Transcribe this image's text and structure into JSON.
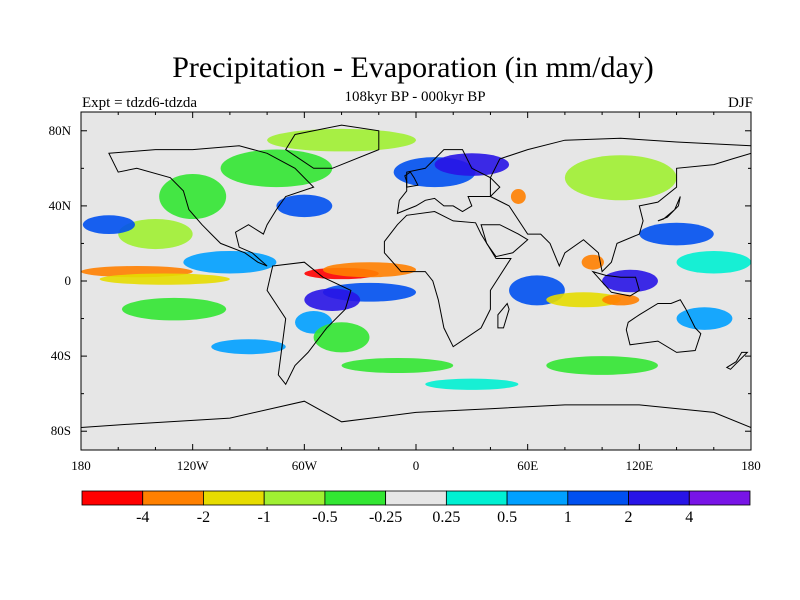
{
  "title": "Precipitation - Evaporation (in mm/day)",
  "subtitle": "108kyr BP - 000kyr BP",
  "left_label": "Expt = tdzd6-tdzda",
  "right_label": "DJF",
  "map": {
    "lat_ticks": [
      "80N",
      "40N",
      "0",
      "40S",
      "80S"
    ],
    "lon_ticks": [
      "180",
      "120W",
      "60W",
      "0",
      "60E",
      "120E",
      "180"
    ]
  },
  "colorbar": {
    "colors": [
      "#ff0000",
      "#ff8000",
      "#e6dc00",
      "#a0f032",
      "#32e632",
      "#e6e6e6",
      "#00f0d2",
      "#00a0ff",
      "#0050f0",
      "#2814e6",
      "#7814e6"
    ],
    "labels": [
      "-4",
      "-2",
      "-1",
      "-0.5",
      "-0.25",
      "0.25",
      "0.5",
      "1",
      "2",
      "4"
    ]
  },
  "regions": [
    {
      "color": "#32e632",
      "lon": -120,
      "lat": 45,
      "rx": 18,
      "ry": 12
    },
    {
      "color": "#a0f032",
      "lon": -140,
      "lat": 25,
      "rx": 20,
      "ry": 8
    },
    {
      "color": "#0050f0",
      "lon": -165,
      "lat": 30,
      "rx": 14,
      "ry": 5
    },
    {
      "color": "#00a0ff",
      "lon": -100,
      "lat": 10,
      "rx": 25,
      "ry": 6
    },
    {
      "color": "#ff8000",
      "lon": -150,
      "lat": 5,
      "rx": 30,
      "ry": 3
    },
    {
      "color": "#e6dc00",
      "lon": -135,
      "lat": 1,
      "rx": 35,
      "ry": 3
    },
    {
      "color": "#32e632",
      "lon": -130,
      "lat": -15,
      "rx": 28,
      "ry": 6
    },
    {
      "color": "#0050f0",
      "lon": -60,
      "lat": 40,
      "rx": 15,
      "ry": 6
    },
    {
      "color": "#32e632",
      "lon": -75,
      "lat": 60,
      "rx": 30,
      "ry": 10
    },
    {
      "color": "#a0f032",
      "lon": -40,
      "lat": 75,
      "rx": 40,
      "ry": 6
    },
    {
      "color": "#0050f0",
      "lon": 10,
      "lat": 58,
      "rx": 22,
      "ry": 8
    },
    {
      "color": "#2814e6",
      "lon": 30,
      "lat": 62,
      "rx": 20,
      "ry": 6
    },
    {
      "color": "#ff8000",
      "lon": 55,
      "lat": 45,
      "rx": 4,
      "ry": 4
    },
    {
      "color": "#ff0000",
      "lon": -40,
      "lat": 4,
      "rx": 20,
      "ry": 3
    },
    {
      "color": "#ff8000",
      "lon": -25,
      "lat": 6,
      "rx": 25,
      "ry": 4
    },
    {
      "color": "#0050f0",
      "lon": -25,
      "lat": -6,
      "rx": 25,
      "ry": 5
    },
    {
      "color": "#2814e6",
      "lon": -45,
      "lat": -10,
      "rx": 15,
      "ry": 6
    },
    {
      "color": "#00a0ff",
      "lon": -55,
      "lat": -22,
      "rx": 10,
      "ry": 6
    },
    {
      "color": "#32e632",
      "lon": -40,
      "lat": -30,
      "rx": 15,
      "ry": 8
    },
    {
      "color": "#0050f0",
      "lon": 65,
      "lat": -5,
      "rx": 15,
      "ry": 8
    },
    {
      "color": "#e6dc00",
      "lon": 90,
      "lat": -10,
      "rx": 20,
      "ry": 4
    },
    {
      "color": "#ff8000",
      "lon": 110,
      "lat": -10,
      "rx": 10,
      "ry": 3
    },
    {
      "color": "#2814e6",
      "lon": 115,
      "lat": 0,
      "rx": 15,
      "ry": 6
    },
    {
      "color": "#ff8000",
      "lon": 95,
      "lat": 10,
      "rx": 6,
      "ry": 4
    },
    {
      "color": "#0050f0",
      "lon": 140,
      "lat": 25,
      "rx": 20,
      "ry": 6
    },
    {
      "color": "#00f0d2",
      "lon": 160,
      "lat": 10,
      "rx": 20,
      "ry": 6
    },
    {
      "color": "#00a0ff",
      "lon": 155,
      "lat": -20,
      "rx": 15,
      "ry": 6
    },
    {
      "color": "#a0f032",
      "lon": 110,
      "lat": 55,
      "rx": 30,
      "ry": 12
    },
    {
      "color": "#32e632",
      "lon": -10,
      "lat": -45,
      "rx": 30,
      "ry": 4
    },
    {
      "color": "#00f0d2",
      "lon": 30,
      "lat": -55,
      "rx": 25,
      "ry": 3
    },
    {
      "color": "#32e632",
      "lon": 100,
      "lat": -45,
      "rx": 30,
      "ry": 5
    },
    {
      "color": "#00a0ff",
      "lon": -90,
      "lat": -35,
      "rx": 20,
      "ry": 4
    }
  ],
  "continents": [
    {
      "name": "north-america",
      "pts": [
        [
          -165,
          68
        ],
        [
          -140,
          70
        ],
        [
          -120,
          70
        ],
        [
          -95,
          72
        ],
        [
          -80,
          68
        ],
        [
          -65,
          60
        ],
        [
          -55,
          50
        ],
        [
          -70,
          45
        ],
        [
          -75,
          38
        ],
        [
          -80,
          30
        ],
        [
          -82,
          25
        ],
        [
          -90,
          30
        ],
        [
          -97,
          26
        ],
        [
          -95,
          18
        ],
        [
          -88,
          15
        ],
        [
          -80,
          8
        ],
        [
          -85,
          10
        ],
        [
          -92,
          15
        ],
        [
          -105,
          20
        ],
        [
          -110,
          25
        ],
        [
          -115,
          30
        ],
        [
          -122,
          38
        ],
        [
          -125,
          48
        ],
        [
          -132,
          55
        ],
        [
          -150,
          60
        ],
        [
          -160,
          58
        ]
      ]
    },
    {
      "name": "south-america",
      "pts": [
        [
          -77,
          8
        ],
        [
          -60,
          10
        ],
        [
          -50,
          2
        ],
        [
          -35,
          -5
        ],
        [
          -38,
          -15
        ],
        [
          -48,
          -25
        ],
        [
          -58,
          -38
        ],
        [
          -65,
          -45
        ],
        [
          -70,
          -55
        ],
        [
          -74,
          -50
        ],
        [
          -72,
          -35
        ],
        [
          -70,
          -20
        ],
        [
          -80,
          -5
        ]
      ]
    },
    {
      "name": "greenland",
      "pts": [
        [
          -55,
          60
        ],
        [
          -45,
          60
        ],
        [
          -20,
          70
        ],
        [
          -20,
          80
        ],
        [
          -40,
          83
        ],
        [
          -65,
          78
        ],
        [
          -70,
          70
        ]
      ]
    },
    {
      "name": "europe",
      "pts": [
        [
          -10,
          36
        ],
        [
          0,
          40
        ],
        [
          5,
          43
        ],
        [
          10,
          44
        ],
        [
          15,
          40
        ],
        [
          20,
          40
        ],
        [
          25,
          37
        ],
        [
          30,
          40
        ],
        [
          28,
          45
        ],
        [
          40,
          45
        ],
        [
          45,
          50
        ],
        [
          40,
          55
        ],
        [
          30,
          60
        ],
        [
          25,
          70
        ],
        [
          15,
          70
        ],
        [
          5,
          60
        ],
        [
          -5,
          58
        ],
        [
          -5,
          48
        ],
        [
          -9,
          43
        ]
      ]
    },
    {
      "name": "africa",
      "pts": [
        [
          -17,
          15
        ],
        [
          -17,
          21
        ],
        [
          -10,
          30
        ],
        [
          -5,
          35
        ],
        [
          10,
          37
        ],
        [
          20,
          32
        ],
        [
          32,
          31
        ],
        [
          35,
          25
        ],
        [
          43,
          12
        ],
        [
          51,
          12
        ],
        [
          40,
          -5
        ],
        [
          40,
          -15
        ],
        [
          35,
          -25
        ],
        [
          20,
          -35
        ],
        [
          15,
          -25
        ],
        [
          12,
          -10
        ],
        [
          9,
          0
        ],
        [
          5,
          5
        ],
        [
          -8,
          5
        ]
      ]
    },
    {
      "name": "asia",
      "pts": [
        [
          40,
          45
        ],
        [
          50,
          40
        ],
        [
          60,
          25
        ],
        [
          67,
          25
        ],
        [
          72,
          20
        ],
        [
          77,
          8
        ],
        [
          80,
          15
        ],
        [
          90,
          22
        ],
        [
          98,
          15
        ],
        [
          100,
          5
        ],
        [
          105,
          10
        ],
        [
          108,
          20
        ],
        [
          120,
          25
        ],
        [
          122,
          32
        ],
        [
          120,
          40
        ],
        [
          130,
          42
        ],
        [
          140,
          50
        ],
        [
          140,
          60
        ],
        [
          160,
          62
        ],
        [
          170,
          65
        ],
        [
          180,
          68
        ],
        [
          180,
          72
        ],
        [
          140,
          74
        ],
        [
          110,
          76
        ],
        [
          80,
          75
        ],
        [
          60,
          70
        ],
        [
          45,
          65
        ],
        [
          40,
          55
        ]
      ]
    },
    {
      "name": "arabia",
      "pts": [
        [
          35,
          30
        ],
        [
          45,
          30
        ],
        [
          55,
          25
        ],
        [
          60,
          22
        ],
        [
          52,
          15
        ],
        [
          43,
          13
        ],
        [
          38,
          20
        ]
      ]
    },
    {
      "name": "australia",
      "pts": [
        [
          114,
          -22
        ],
        [
          120,
          -18
        ],
        [
          130,
          -12
        ],
        [
          137,
          -12
        ],
        [
          142,
          -10
        ],
        [
          145,
          -15
        ],
        [
          150,
          -25
        ],
        [
          153,
          -28
        ],
        [
          150,
          -37
        ],
        [
          140,
          -38
        ],
        [
          130,
          -32
        ],
        [
          115,
          -34
        ],
        [
          113,
          -26
        ]
      ]
    },
    {
      "name": "antarctica",
      "pts": [
        [
          -180,
          -78
        ],
        [
          -150,
          -76
        ],
        [
          -100,
          -73
        ],
        [
          -60,
          -64
        ],
        [
          -40,
          -75
        ],
        [
          0,
          -70
        ],
        [
          40,
          -68
        ],
        [
          80,
          -66
        ],
        [
          120,
          -66
        ],
        [
          160,
          -70
        ],
        [
          180,
          -78
        ],
        [
          180,
          -90
        ],
        [
          -180,
          -90
        ]
      ]
    },
    {
      "name": "indonesia",
      "pts": [
        [
          95,
          5
        ],
        [
          105,
          -6
        ],
        [
          115,
          -8
        ],
        [
          120,
          -5
        ],
        [
          118,
          2
        ],
        [
          110,
          2
        ],
        [
          102,
          3
        ]
      ]
    },
    {
      "name": "japan",
      "pts": [
        [
          130,
          32
        ],
        [
          135,
          34
        ],
        [
          141,
          40
        ],
        [
          142,
          45
        ],
        [
          139,
          38
        ],
        [
          133,
          33
        ]
      ]
    },
    {
      "name": "uk",
      "pts": [
        [
          -5,
          50
        ],
        [
          1,
          51
        ],
        [
          -1,
          55
        ],
        [
          -3,
          58
        ],
        [
          -6,
          56
        ],
        [
          -5,
          53
        ]
      ]
    },
    {
      "name": "madagascar",
      "pts": [
        [
          44,
          -25
        ],
        [
          47,
          -25
        ],
        [
          50,
          -15
        ],
        [
          49,
          -12
        ],
        [
          44,
          -18
        ]
      ]
    },
    {
      "name": "new-zealand",
      "pts": [
        [
          167,
          -46
        ],
        [
          172,
          -43
        ],
        [
          175,
          -38
        ],
        [
          178,
          -38
        ],
        [
          174,
          -42
        ],
        [
          169,
          -47
        ]
      ]
    }
  ]
}
